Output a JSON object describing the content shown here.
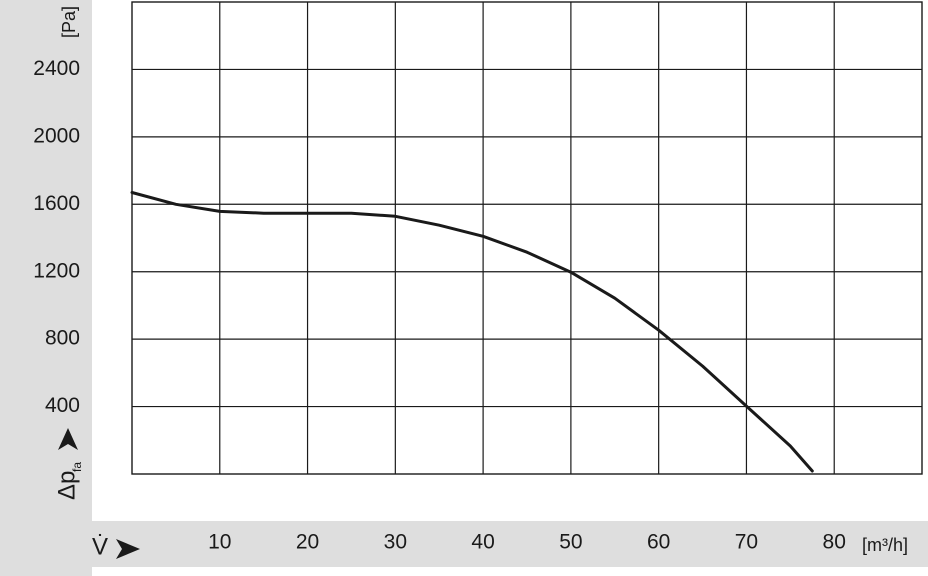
{
  "chart_data": {
    "type": "line",
    "y_unit": "[Pa]",
    "y_axis_label": "Δp",
    "y_axis_label_sub": "fa",
    "x_axis_label": "V̇",
    "x_unit": "[m³/h]",
    "x": [
      0,
      5,
      10,
      15,
      20,
      25,
      30,
      35,
      40,
      45,
      50,
      55,
      60,
      65,
      70,
      75,
      77.5
    ],
    "series": [
      {
        "color": "#1a1a1a",
        "values": [
          1670,
          1600,
          1558,
          1547,
          1547,
          1547,
          1529,
          1476,
          1410,
          1316,
          1197,
          1043,
          853,
          640,
          403,
          166,
          18
        ]
      }
    ],
    "xlim": [
      0,
      90
    ],
    "xticks": [
      10,
      20,
      30,
      40,
      50,
      60,
      70,
      80
    ],
    "ylim": [
      0,
      2800
    ],
    "yticks": [
      400,
      800,
      1200,
      1600,
      2000,
      2400
    ],
    "grid": true
  }
}
